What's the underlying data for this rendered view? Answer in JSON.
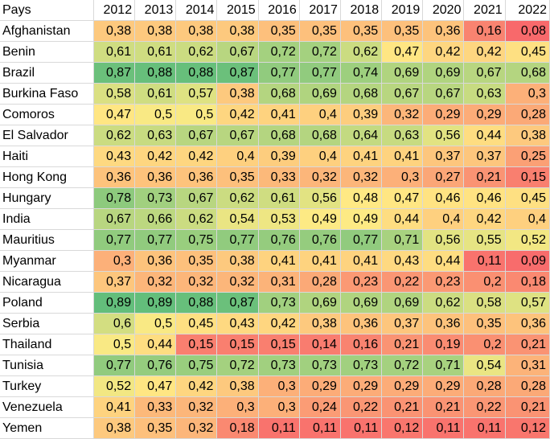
{
  "chart_data": {
    "type": "heatmap",
    "title": "",
    "corner_label": "Pays",
    "columns": [
      "2012",
      "2013",
      "2014",
      "2015",
      "2016",
      "2017",
      "2018",
      "2019",
      "2020",
      "2021",
      "2022"
    ],
    "rows": [
      "Afghanistan",
      "Benin",
      "Brazil",
      "Burkina Faso",
      "Comoros",
      "El Salvador",
      "Haiti",
      "Hong Kong",
      "Hungary",
      "India",
      "Mauritius",
      "Myanmar",
      "Nicaragua",
      "Poland",
      "Serbia",
      "Thailand",
      "Tunisia",
      "Turkey",
      "Venezuela",
      "Yemen"
    ],
    "values": [
      [
        0.38,
        0.38,
        0.38,
        0.38,
        0.35,
        0.35,
        0.35,
        0.35,
        0.36,
        0.16,
        0.08
      ],
      [
        0.61,
        0.61,
        0.62,
        0.67,
        0.72,
        0.72,
        0.62,
        0.47,
        0.42,
        0.42,
        0.45
      ],
      [
        0.87,
        0.88,
        0.88,
        0.87,
        0.77,
        0.77,
        0.74,
        0.69,
        0.69,
        0.67,
        0.68
      ],
      [
        0.58,
        0.61,
        0.57,
        0.38,
        0.68,
        0.69,
        0.68,
        0.67,
        0.67,
        0.63,
        0.3
      ],
      [
        0.47,
        0.5,
        0.5,
        0.42,
        0.41,
        0.4,
        0.39,
        0.32,
        0.29,
        0.29,
        0.28
      ],
      [
        0.62,
        0.63,
        0.67,
        0.67,
        0.68,
        0.68,
        0.64,
        0.63,
        0.56,
        0.44,
        0.38
      ],
      [
        0.43,
        0.42,
        0.42,
        0.4,
        0.39,
        0.4,
        0.41,
        0.41,
        0.37,
        0.37,
        0.25
      ],
      [
        0.36,
        0.36,
        0.36,
        0.35,
        0.33,
        0.32,
        0.32,
        0.3,
        0.27,
        0.21,
        0.15
      ],
      [
        0.78,
        0.73,
        0.67,
        0.62,
        0.61,
        0.56,
        0.48,
        0.47,
        0.46,
        0.46,
        0.45
      ],
      [
        0.67,
        0.66,
        0.62,
        0.54,
        0.53,
        0.49,
        0.49,
        0.44,
        0.4,
        0.42,
        0.4
      ],
      [
        0.77,
        0.77,
        0.75,
        0.77,
        0.76,
        0.76,
        0.77,
        0.71,
        0.56,
        0.55,
        0.52
      ],
      [
        0.3,
        0.36,
        0.35,
        0.38,
        0.41,
        0.41,
        0.41,
        0.43,
        0.44,
        0.11,
        0.09
      ],
      [
        0.37,
        0.32,
        0.32,
        0.32,
        0.31,
        0.28,
        0.23,
        0.22,
        0.23,
        0.2,
        0.18
      ],
      [
        0.89,
        0.89,
        0.88,
        0.87,
        0.73,
        0.69,
        0.69,
        0.69,
        0.62,
        0.58,
        0.57
      ],
      [
        0.6,
        0.5,
        0.45,
        0.43,
        0.42,
        0.38,
        0.36,
        0.37,
        0.36,
        0.35,
        0.36
      ],
      [
        0.5,
        0.44,
        0.15,
        0.15,
        0.15,
        0.14,
        0.16,
        0.21,
        0.19,
        0.2,
        0.21
      ],
      [
        0.77,
        0.76,
        0.75,
        0.72,
        0.73,
        0.73,
        0.73,
        0.72,
        0.71,
        0.54,
        0.31
      ],
      [
        0.52,
        0.47,
        0.42,
        0.38,
        0.3,
        0.29,
        0.29,
        0.29,
        0.29,
        0.28,
        0.28
      ],
      [
        0.41,
        0.33,
        0.32,
        0.3,
        0.3,
        0.24,
        0.22,
        0.21,
        0.21,
        0.22,
        0.21
      ],
      [
        0.38,
        0.35,
        0.32,
        0.18,
        0.11,
        0.11,
        0.11,
        0.12,
        0.11,
        0.11,
        0.12
      ]
    ],
    "decimal_separator": ",",
    "color_scale": {
      "type": "3-color",
      "min_value": 0.08,
      "min_color": "#f8696b",
      "mid_value": 0.485,
      "mid_color": "#ffeb84",
      "max_value": 0.89,
      "max_color": "#63be7b"
    }
  }
}
